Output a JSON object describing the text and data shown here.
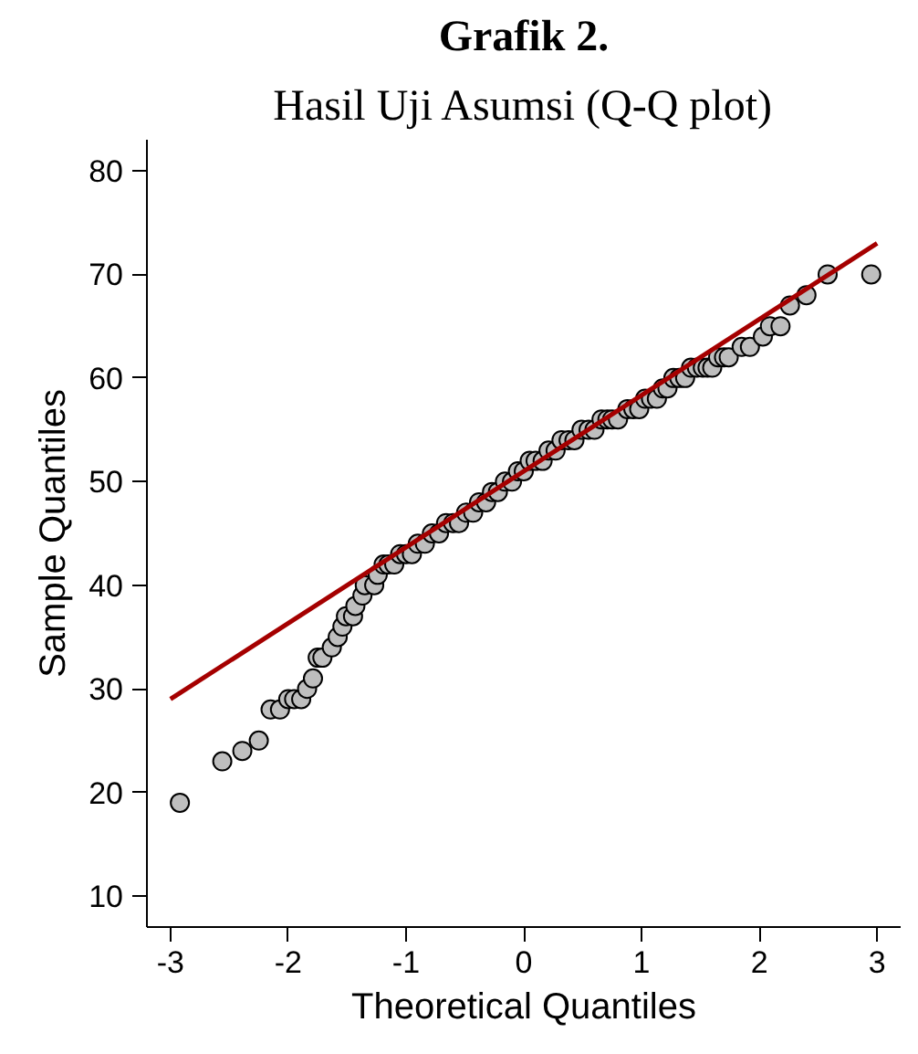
{
  "chart_data": {
    "type": "scatter",
    "title": "Grafik 2.",
    "subtitle": "Hasil Uji Asumsi (Q-Q plot)",
    "xlabel": "Theoretical Quantiles",
    "ylabel": "Sample Quantiles",
    "grid": false,
    "xlim": [
      -3.2,
      3.2
    ],
    "ylim": [
      7,
      83
    ],
    "xticks": [
      -3,
      -2,
      -1,
      0,
      1,
      2,
      3
    ],
    "yticks": [
      10,
      20,
      30,
      40,
      50,
      60,
      70,
      80
    ],
    "series": [
      {
        "marker": "circle",
        "color": "#bebebe",
        "x": [
          -2.92,
          -2.56,
          -2.39,
          -2.25,
          -2.15,
          -2.07,
          -2.0,
          -1.95,
          -1.89,
          -1.84,
          -1.79,
          -1.75,
          -1.71,
          -1.63,
          -1.58,
          -1.54,
          -1.51,
          -1.45,
          -1.43,
          -1.37,
          -1.35,
          -1.27,
          -1.24,
          -1.19,
          -1.15,
          -1.1,
          -1.05,
          -1.0,
          -0.95,
          -0.9,
          -0.84,
          -0.78,
          -0.72,
          -0.66,
          -0.6,
          -0.55,
          -0.49,
          -0.43,
          -0.38,
          -0.32,
          -0.27,
          -0.22,
          -0.16,
          -0.1,
          -0.05,
          0.0,
          0.05,
          0.1,
          0.16,
          0.21,
          0.27,
          0.32,
          0.38,
          0.43,
          0.49,
          0.55,
          0.6,
          0.66,
          0.71,
          0.75,
          0.8,
          0.88,
          0.93,
          0.98,
          1.03,
          1.08,
          1.13,
          1.18,
          1.22,
          1.27,
          1.32,
          1.37,
          1.42,
          1.47,
          1.52,
          1.56,
          1.6,
          1.65,
          1.7,
          1.74,
          1.85,
          1.92,
          2.03,
          2.09,
          2.18,
          2.26,
          2.4,
          2.58,
          2.95
        ],
        "values": [
          19,
          23,
          24,
          25,
          28,
          28,
          29,
          29,
          29,
          30,
          31,
          33,
          33,
          34,
          35,
          36,
          37,
          37,
          38,
          39,
          40,
          40,
          41,
          42,
          42,
          42,
          43,
          43,
          43,
          44,
          44,
          45,
          45,
          46,
          46,
          46,
          47,
          47,
          48,
          48,
          49,
          49,
          50,
          50,
          51,
          51,
          52,
          52,
          52,
          53,
          53,
          54,
          54,
          54,
          55,
          55,
          55,
          56,
          56,
          56,
          56,
          57,
          57,
          57,
          58,
          58,
          58,
          59,
          59,
          60,
          60,
          60,
          61,
          61,
          61,
          61,
          61,
          62,
          62,
          62,
          63,
          63,
          64,
          65,
          65,
          67,
          68,
          70,
          70
        ]
      },
      {
        "type": "line",
        "color": "#a50000",
        "x": [
          -3,
          3
        ],
        "values": [
          29,
          73
        ]
      }
    ]
  }
}
